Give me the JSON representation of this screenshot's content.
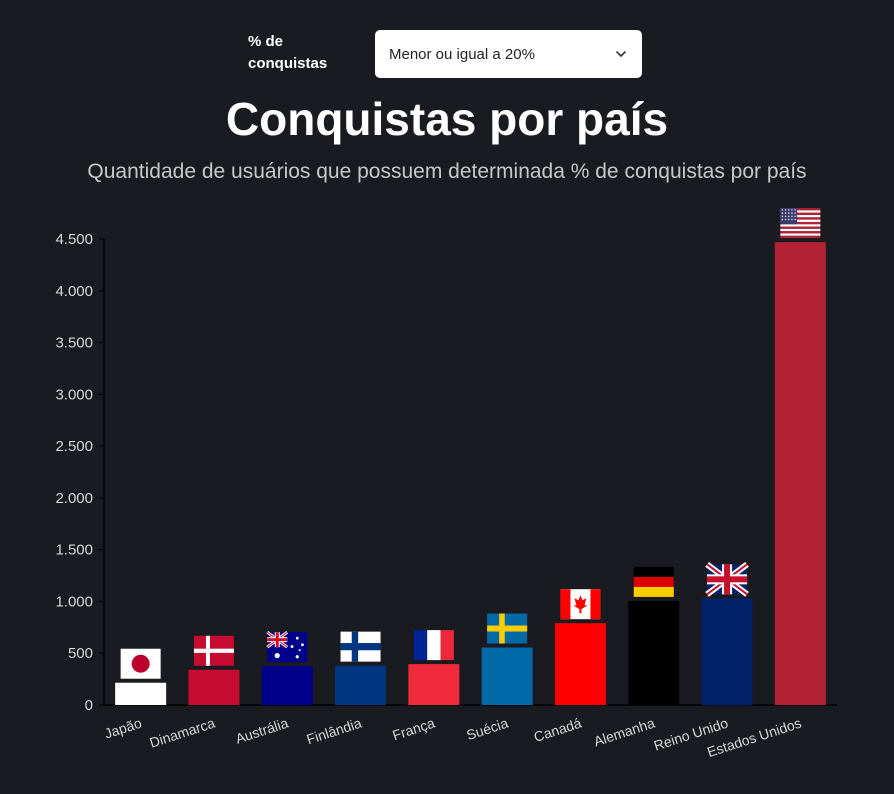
{
  "filter": {
    "label": "% de conquistas",
    "selected": "Menor ou igual a 20%",
    "chevron_icon": "chevron-down-icon"
  },
  "chart_data": {
    "type": "bar",
    "title": "Conquistas por país",
    "subtitle": "Quantidade de usuários que possuem determinada % de conquistas por país",
    "xlabel": "",
    "ylabel": "",
    "ylim": [
      0,
      4500
    ],
    "yticks": [
      0,
      500,
      1000,
      1500,
      2000,
      2500,
      3000,
      3500,
      4000,
      4500
    ],
    "ytick_labels": [
      "0",
      "500",
      "1.000",
      "1.500",
      "2.000",
      "2.500",
      "3.000",
      "3.500",
      "4.000",
      "4.500"
    ],
    "grid": false,
    "categories": [
      "Japão",
      "Dinamarca",
      "Austrália",
      "Finlândia",
      "França",
      "Suécia",
      "Canadá",
      "Alemanha",
      "Reino Unido",
      "Estados Unidos"
    ],
    "values": [
      215,
      340,
      375,
      380,
      395,
      555,
      790,
      1005,
      1030,
      4470
    ],
    "colors": [
      "#ffffff",
      "#c60c30",
      "#00008b",
      "#003580",
      "#ef2b3c",
      "#006aa7",
      "#ff0000",
      "#000000",
      "#012169",
      "#b22234"
    ],
    "flags": [
      "japan-flag-icon",
      "denmark-flag-icon",
      "australia-flag-icon",
      "finland-flag-icon",
      "france-flag-icon",
      "sweden-flag-icon",
      "canada-flag-icon",
      "germany-flag-icon",
      "united-kingdom-flag-icon",
      "united-states-flag-icon"
    ]
  }
}
